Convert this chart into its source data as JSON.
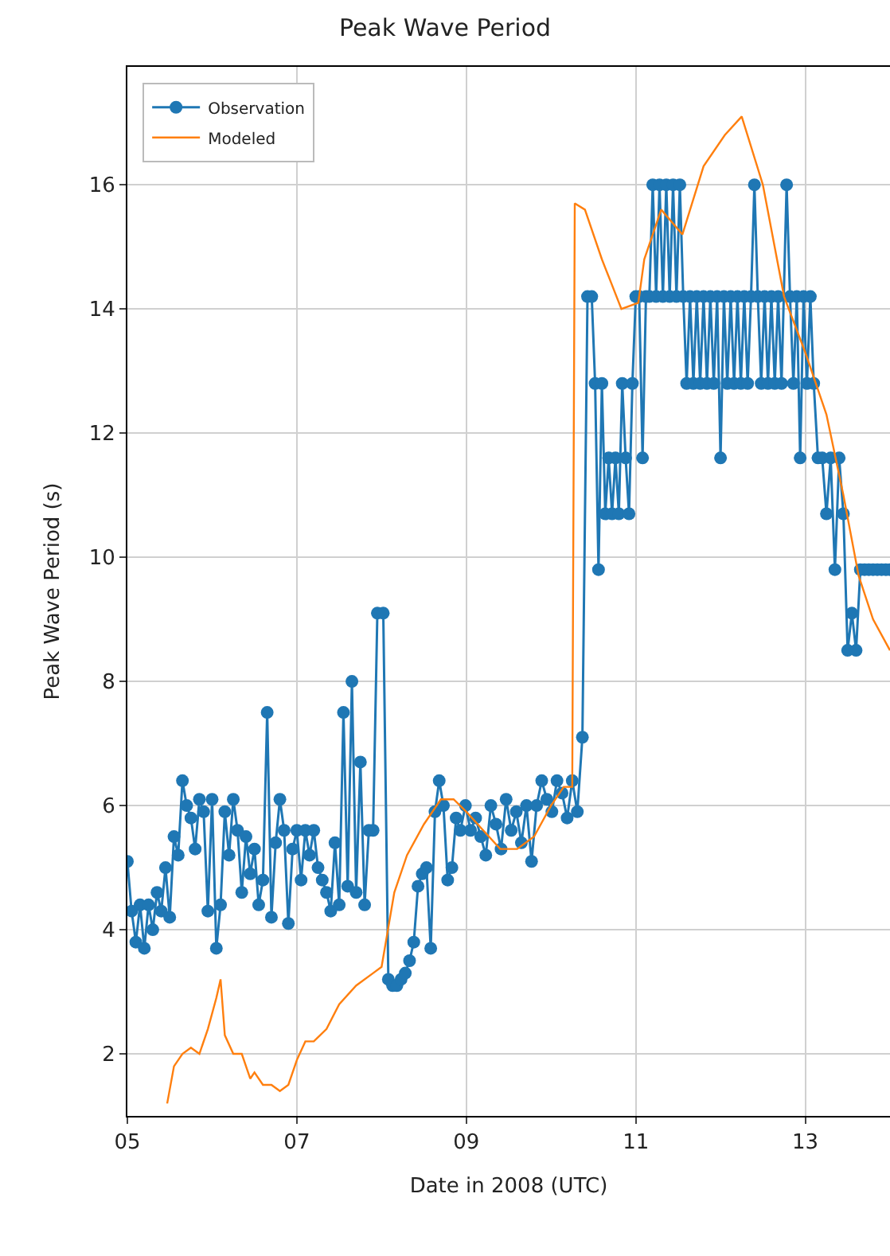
{
  "chart_data": {
    "type": "line",
    "title": "Peak Wave Period",
    "xlabel": "Date in 2008 (UTC)",
    "ylabel": "Peak Wave Period (s)",
    "xlim": [
      5,
      14.0
    ],
    "xticks": [
      {
        "value": 5,
        "label": "05"
      },
      {
        "value": 7,
        "label": "07"
      },
      {
        "value": 9,
        "label": "09"
      },
      {
        "value": 11,
        "label": "11"
      },
      {
        "value": 13,
        "label": "13"
      }
    ],
    "ylim": [
      1.0,
      17.9
    ],
    "yticks": [
      2,
      4,
      6,
      8,
      10,
      12,
      14,
      16
    ],
    "grid": true,
    "legend": "top left",
    "series": [
      {
        "name": "Observation",
        "color": "#1f77b4",
        "marker": "circle",
        "x": [
          5.0,
          5.05,
          5.1,
          5.15,
          5.2,
          5.25,
          5.3,
          5.35,
          5.4,
          5.45,
          5.5,
          5.55,
          5.6,
          5.65,
          5.7,
          5.75,
          5.8,
          5.85,
          5.9,
          5.95,
          6.0,
          6.05,
          6.1,
          6.15,
          6.2,
          6.25,
          6.3,
          6.35,
          6.4,
          6.45,
          6.5,
          6.55,
          6.6,
          6.65,
          6.7,
          6.75,
          6.8,
          6.85,
          6.9,
          6.95,
          7.0,
          7.05,
          7.1,
          7.15,
          7.2,
          7.25,
          7.3,
          7.35,
          7.4,
          7.45,
          7.5,
          7.55,
          7.6,
          7.65,
          7.7,
          7.75,
          7.8,
          7.85,
          7.9,
          7.95,
          8.02,
          8.08,
          8.13,
          8.18,
          8.23,
          8.28,
          8.33,
          8.38,
          8.43,
          8.48,
          8.53,
          8.58,
          8.63,
          8.68,
          8.73,
          8.78,
          8.83,
          8.88,
          8.93,
          8.99,
          9.05,
          9.11,
          9.17,
          9.23,
          9.29,
          9.35,
          9.41,
          9.47,
          9.53,
          9.59,
          9.65,
          9.71,
          9.77,
          9.83,
          9.89,
          9.95,
          10.01,
          10.07,
          10.13,
          10.19,
          10.25,
          10.31,
          10.37,
          10.43,
          10.48,
          10.52,
          10.56,
          10.6,
          10.64,
          10.68,
          10.72,
          10.76,
          10.8,
          10.84,
          10.88,
          10.92,
          10.96,
          11.0,
          11.04,
          11.08,
          11.12,
          11.16,
          11.2,
          11.24,
          11.28,
          11.32,
          11.36,
          11.4,
          11.44,
          11.48,
          11.52,
          11.56,
          11.6,
          11.64,
          11.68,
          11.72,
          11.76,
          11.8,
          11.84,
          11.88,
          11.92,
          11.96,
          12.0,
          12.04,
          12.08,
          12.12,
          12.16,
          12.2,
          12.24,
          12.28,
          12.32,
          12.36,
          12.4,
          12.44,
          12.48,
          12.52,
          12.56,
          12.6,
          12.64,
          12.68,
          12.72,
          12.78,
          12.82,
          12.86,
          12.9,
          12.94,
          12.98,
          13.02,
          13.06,
          13.1,
          13.15,
          13.2,
          13.25,
          13.3,
          13.35,
          13.4,
          13.45,
          13.5,
          13.55,
          13.6,
          13.65,
          13.7,
          13.75,
          13.8,
          13.85,
          13.9,
          13.95,
          14.0
        ],
        "values": [
          5.1,
          4.3,
          3.8,
          4.4,
          3.7,
          4.4,
          4.0,
          4.6,
          4.3,
          5.0,
          4.2,
          5.5,
          5.2,
          6.4,
          6.0,
          5.8,
          5.3,
          6.1,
          5.9,
          4.3,
          6.1,
          3.7,
          4.4,
          5.9,
          5.2,
          6.1,
          5.6,
          4.6,
          5.5,
          4.9,
          5.3,
          4.4,
          4.8,
          7.5,
          4.2,
          5.4,
          6.1,
          5.6,
          4.1,
          5.3,
          5.6,
          4.8,
          5.6,
          5.2,
          5.6,
          5.0,
          4.8,
          4.6,
          4.3,
          5.4,
          4.4,
          7.5,
          4.7,
          8.0,
          4.6,
          6.7,
          4.4,
          5.6,
          5.6,
          9.1,
          9.1,
          3.2,
          3.1,
          3.1,
          3.2,
          3.3,
          3.5,
          3.8,
          4.7,
          4.9,
          5.0,
          3.7,
          5.9,
          6.4,
          6.0,
          4.8,
          5.0,
          5.8,
          5.6,
          6.0,
          5.6,
          5.8,
          5.5,
          5.2,
          6.0,
          5.7,
          5.3,
          6.1,
          5.6,
          5.9,
          5.4,
          6.0,
          5.1,
          6.0,
          6.4,
          6.1,
          5.9,
          6.4,
          6.2,
          5.8,
          6.4,
          5.9,
          7.1,
          14.2,
          14.2,
          12.8,
          9.8,
          12.8,
          10.7,
          11.6,
          10.7,
          11.6,
          10.7,
          12.8,
          11.6,
          10.7,
          12.8,
          14.2,
          14.2,
          11.6,
          14.2,
          14.2,
          16.0,
          14.2,
          16.0,
          14.2,
          16.0,
          14.2,
          16.0,
          14.2,
          16.0,
          14.2,
          12.8,
          14.2,
          12.8,
          14.2,
          12.8,
          14.2,
          12.8,
          14.2,
          12.8,
          14.2,
          11.6,
          14.2,
          12.8,
          14.2,
          12.8,
          14.2,
          12.8,
          14.2,
          12.8,
          14.2,
          16.0,
          14.2,
          12.8,
          14.2,
          12.8,
          14.2,
          12.8,
          14.2,
          12.8,
          16.0,
          14.2,
          12.8,
          14.2,
          11.6,
          14.2,
          12.8,
          14.2,
          12.8,
          11.6,
          11.6,
          10.7,
          11.6,
          9.8,
          11.6,
          10.7,
          8.5,
          9.1,
          8.5,
          9.8,
          9.8,
          9.8,
          9.8,
          9.8,
          9.8,
          9.8,
          9.8
        ]
      },
      {
        "name": "Modeled",
        "color": "#ff7f0e",
        "marker": "none",
        "x": [
          5.47,
          5.55,
          5.65,
          5.75,
          5.85,
          5.95,
          6.05,
          6.1,
          6.15,
          6.25,
          6.35,
          6.45,
          6.5,
          6.6,
          6.7,
          6.8,
          6.9,
          7.0,
          7.1,
          7.2,
          7.35,
          7.5,
          7.7,
          7.9,
          8.0,
          8.05,
          8.15,
          8.3,
          8.5,
          8.7,
          8.85,
          9.0,
          9.2,
          9.4,
          9.6,
          9.8,
          10.0,
          10.15,
          10.25,
          10.28,
          10.4,
          10.6,
          10.83,
          11.03,
          11.1,
          11.3,
          11.55,
          11.8,
          12.05,
          12.25,
          12.5,
          12.75,
          13.0,
          13.25,
          13.45,
          13.63,
          13.8,
          14.0
        ],
        "values": [
          1.2,
          1.8,
          2.0,
          2.1,
          2.0,
          2.4,
          2.9,
          3.2,
          2.3,
          2.0,
          2.0,
          1.6,
          1.7,
          1.5,
          1.5,
          1.4,
          1.5,
          1.9,
          2.2,
          2.2,
          2.4,
          2.8,
          3.1,
          3.3,
          3.4,
          3.8,
          4.6,
          5.2,
          5.7,
          6.1,
          6.1,
          5.9,
          5.6,
          5.3,
          5.3,
          5.5,
          6.0,
          6.3,
          6.3,
          15.7,
          15.6,
          14.8,
          14.0,
          14.1,
          14.8,
          15.6,
          15.2,
          16.3,
          16.8,
          17.1,
          16.0,
          14.2,
          13.3,
          12.3,
          11.0,
          9.7,
          9.0,
          8.5
        ]
      }
    ]
  }
}
